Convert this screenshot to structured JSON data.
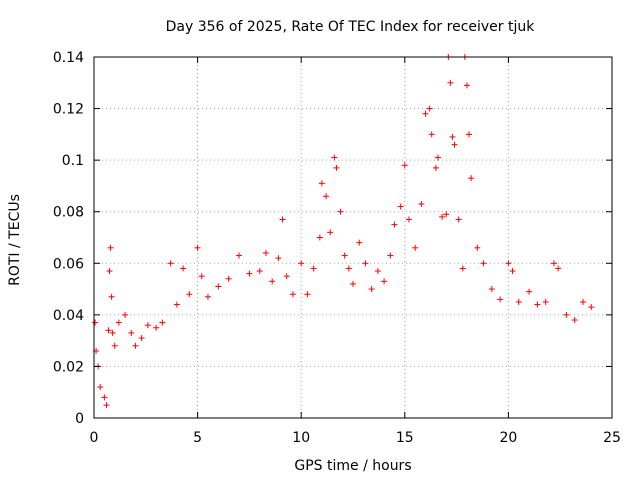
{
  "chart_data": {
    "type": "scatter",
    "title": "Day 356 of 2025, Rate Of TEC Index for receiver tjuk",
    "xlabel": "GPS time / hours",
    "ylabel": "ROTI / TECUs",
    "xlim": [
      0,
      25
    ],
    "ylim": [
      0,
      0.14
    ],
    "x_ticks": [
      0,
      5,
      10,
      15,
      20,
      25
    ],
    "x_tick_labels": [
      "0",
      "5",
      "10",
      "15",
      "20",
      "25"
    ],
    "y_ticks": [
      0,
      0.02,
      0.04,
      0.06,
      0.08,
      0.1,
      0.12,
      0.14
    ],
    "y_tick_labels": [
      "0",
      "0.02",
      "0.04",
      "0.06",
      "0.08",
      "0.1",
      "0.12",
      "0.14"
    ],
    "grid": true,
    "marker": "+",
    "color": "#ff0000",
    "series": [
      {
        "name": "ROTI",
        "points": [
          [
            0.05,
            0.037
          ],
          [
            0.1,
            0.026
          ],
          [
            0.2,
            0.02
          ],
          [
            0.3,
            0.012
          ],
          [
            0.5,
            0.008
          ],
          [
            0.6,
            0.005
          ],
          [
            0.7,
            0.034
          ],
          [
            0.75,
            0.057
          ],
          [
            0.8,
            0.066
          ],
          [
            0.85,
            0.047
          ],
          [
            0.9,
            0.033
          ],
          [
            1.0,
            0.028
          ],
          [
            1.2,
            0.037
          ],
          [
            1.5,
            0.04
          ],
          [
            1.8,
            0.033
          ],
          [
            2.0,
            0.028
          ],
          [
            2.3,
            0.031
          ],
          [
            2.6,
            0.036
          ],
          [
            3.0,
            0.035
          ],
          [
            3.3,
            0.037
          ],
          [
            3.7,
            0.06
          ],
          [
            4.0,
            0.044
          ],
          [
            4.3,
            0.058
          ],
          [
            4.6,
            0.048
          ],
          [
            5.0,
            0.066
          ],
          [
            5.2,
            0.055
          ],
          [
            5.5,
            0.047
          ],
          [
            6.0,
            0.051
          ],
          [
            6.5,
            0.054
          ],
          [
            7.0,
            0.063
          ],
          [
            7.5,
            0.056
          ],
          [
            8.0,
            0.057
          ],
          [
            8.3,
            0.064
          ],
          [
            8.6,
            0.053
          ],
          [
            8.9,
            0.062
          ],
          [
            9.1,
            0.077
          ],
          [
            9.3,
            0.055
          ],
          [
            9.6,
            0.048
          ],
          [
            10.0,
            0.06
          ],
          [
            10.3,
            0.048
          ],
          [
            10.6,
            0.058
          ],
          [
            10.9,
            0.07
          ],
          [
            11.0,
            0.091
          ],
          [
            11.2,
            0.086
          ],
          [
            11.4,
            0.072
          ],
          [
            11.6,
            0.101
          ],
          [
            11.7,
            0.097
          ],
          [
            11.9,
            0.08
          ],
          [
            12.1,
            0.063
          ],
          [
            12.3,
            0.058
          ],
          [
            12.5,
            0.052
          ],
          [
            12.8,
            0.068
          ],
          [
            13.1,
            0.06
          ],
          [
            13.4,
            0.05
          ],
          [
            13.7,
            0.057
          ],
          [
            14.0,
            0.053
          ],
          [
            14.3,
            0.063
          ],
          [
            14.5,
            0.075
          ],
          [
            14.8,
            0.082
          ],
          [
            15.0,
            0.098
          ],
          [
            15.2,
            0.077
          ],
          [
            15.5,
            0.066
          ],
          [
            15.8,
            0.083
          ],
          [
            16.0,
            0.118
          ],
          [
            16.2,
            0.12
          ],
          [
            16.3,
            0.11
          ],
          [
            16.5,
            0.097
          ],
          [
            16.6,
            0.101
          ],
          [
            16.8,
            0.078
          ],
          [
            17.0,
            0.079
          ],
          [
            17.1,
            0.14
          ],
          [
            17.2,
            0.13
          ],
          [
            17.3,
            0.109
          ],
          [
            17.4,
            0.106
          ],
          [
            17.6,
            0.077
          ],
          [
            17.8,
            0.058
          ],
          [
            17.9,
            0.14
          ],
          [
            18.0,
            0.129
          ],
          [
            18.1,
            0.11
          ],
          [
            18.2,
            0.093
          ],
          [
            18.5,
            0.066
          ],
          [
            18.8,
            0.06
          ],
          [
            19.2,
            0.05
          ],
          [
            19.6,
            0.046
          ],
          [
            20.0,
            0.06
          ],
          [
            20.2,
            0.057
          ],
          [
            20.5,
            0.045
          ],
          [
            21.0,
            0.049
          ],
          [
            21.4,
            0.044
          ],
          [
            21.8,
            0.045
          ],
          [
            22.2,
            0.06
          ],
          [
            22.4,
            0.058
          ],
          [
            22.8,
            0.04
          ],
          [
            23.2,
            0.038
          ],
          [
            23.6,
            0.045
          ],
          [
            24.0,
            0.043
          ]
        ]
      }
    ]
  }
}
